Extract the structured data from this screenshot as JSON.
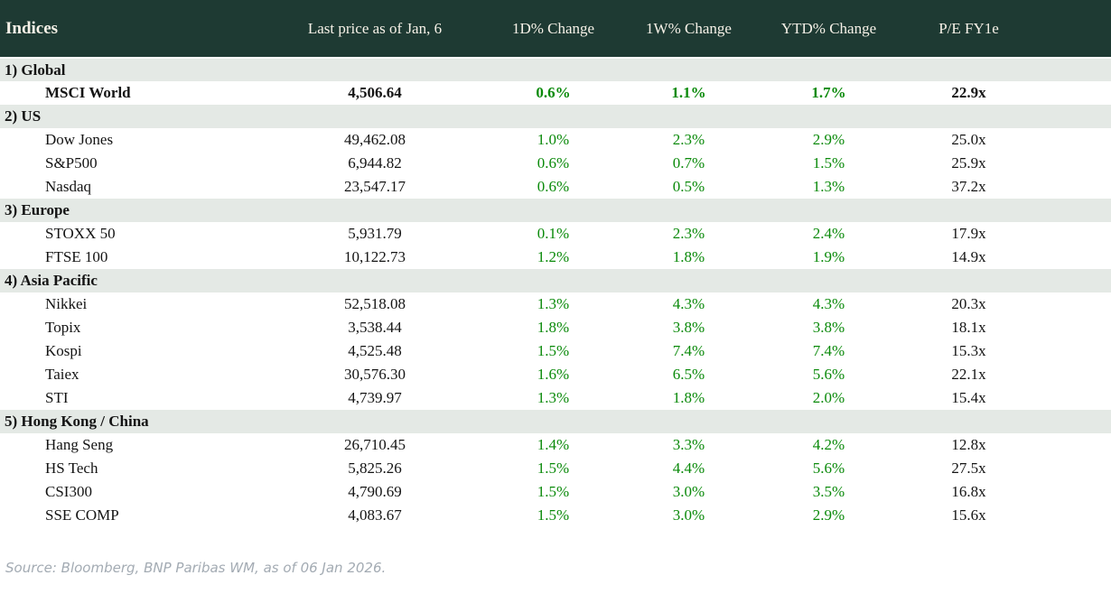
{
  "table": {
    "title": "Indices",
    "columns": [
      "Last price as of Jan, 6",
      "1D% Change",
      "1W% Change",
      "YTD% Change",
      "P/E FY1e"
    ],
    "sections": [
      {
        "label": "1) Global",
        "rows": [
          {
            "name": "MSCI World",
            "bold": true,
            "price": "4,506.64",
            "d1": "0.6%",
            "w1": "1.1%",
            "ytd": "1.7%",
            "pe": "22.9x"
          }
        ]
      },
      {
        "label": "2) US",
        "rows": [
          {
            "name": "Dow Jones",
            "price": "49,462.08",
            "d1": "1.0%",
            "w1": "2.3%",
            "ytd": "2.9%",
            "pe": "25.0x"
          },
          {
            "name": "S&P500",
            "price": "6,944.82",
            "d1": "0.6%",
            "w1": "0.7%",
            "ytd": "1.5%",
            "pe": "25.9x"
          },
          {
            "name": "Nasdaq",
            "price": "23,547.17",
            "d1": "0.6%",
            "w1": "0.5%",
            "ytd": "1.3%",
            "pe": "37.2x"
          }
        ]
      },
      {
        "label": "3) Europe",
        "rows": [
          {
            "name": "STOXX 50",
            "price": "5,931.79",
            "d1": "0.1%",
            "w1": "2.3%",
            "ytd": "2.4%",
            "pe": "17.9x"
          },
          {
            "name": "FTSE 100",
            "price": "10,122.73",
            "d1": "1.2%",
            "w1": "1.8%",
            "ytd": "1.9%",
            "pe": "14.9x"
          }
        ]
      },
      {
        "label": "4) Asia Pacific",
        "rows": [
          {
            "name": "Nikkei",
            "price": "52,518.08",
            "d1": "1.3%",
            "w1": "4.3%",
            "ytd": "4.3%",
            "pe": "20.3x"
          },
          {
            "name": "Topix",
            "price": "3,538.44",
            "d1": "1.8%",
            "w1": "3.8%",
            "ytd": "3.8%",
            "pe": "18.1x"
          },
          {
            "name": "Kospi",
            "price": "4,525.48",
            "d1": "1.5%",
            "w1": "7.4%",
            "ytd": "7.4%",
            "pe": "15.3x"
          },
          {
            "name": "Taiex",
            "price": "30,576.30",
            "d1": "1.6%",
            "w1": "6.5%",
            "ytd": "5.6%",
            "pe": "22.1x"
          },
          {
            "name": "STI",
            "price": "4,739.97",
            "d1": "1.3%",
            "w1": "1.8%",
            "ytd": "2.0%",
            "pe": "15.4x"
          }
        ]
      },
      {
        "label": "5) Hong Kong / China",
        "rows": [
          {
            "name": "Hang Seng",
            "price": "26,710.45",
            "d1": "1.4%",
            "w1": "3.3%",
            "ytd": "4.2%",
            "pe": "12.8x"
          },
          {
            "name": "HS Tech",
            "price": "5,825.26",
            "d1": "1.5%",
            "w1": "4.4%",
            "ytd": "5.6%",
            "pe": "27.5x"
          },
          {
            "name": "CSI300",
            "price": "4,790.69",
            "d1": "1.5%",
            "w1": "3.0%",
            "ytd": "3.5%",
            "pe": "16.8x"
          },
          {
            "name": "SSE COMP",
            "price": "4,083.67",
            "d1": "1.5%",
            "w1": "3.0%",
            "ytd": "2.9%",
            "pe": "15.6x"
          }
        ]
      }
    ]
  },
  "footer": {
    "source": "Source: Bloomberg, BNP Paribas WM, as of 06 Jan 2026."
  },
  "colors": {
    "header_bg": "#1e3a33",
    "header_text": "#f6f1e7",
    "section_bg": "#e4e9e5",
    "positive_green": "#0a8a0a",
    "body_text": "#141414",
    "source_text": "#a3abb3"
  }
}
